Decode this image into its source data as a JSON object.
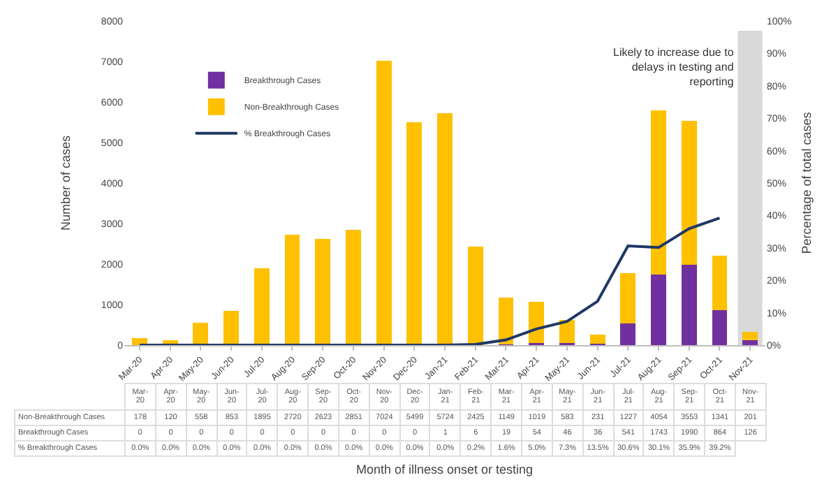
{
  "chart_data": {
    "type": "bar",
    "stacked": true,
    "categories": [
      "Mar-20",
      "Apr-20",
      "May-20",
      "Jun-20",
      "Jul-20",
      "Aug-20",
      "Sep-20",
      "Oct-20",
      "Nov-20",
      "Dec-20",
      "Jan-21",
      "Feb-21",
      "Mar-21",
      "Apr-21",
      "May-21",
      "Jun-21",
      "Jul-21",
      "Aug-21",
      "Sep-21",
      "Oct-21",
      "Nov-21"
    ],
    "series": [
      {
        "name": "Breakthrough Cases",
        "color": "#7030a0",
        "values": [
          0,
          0,
          0,
          0,
          0,
          0,
          0,
          0,
          0,
          0,
          1,
          6,
          19,
          54,
          46,
          36,
          541,
          1743,
          1990,
          864,
          126
        ]
      },
      {
        "name": "Non-Breakthrough Cases",
        "color": "#ffc000",
        "values": [
          178,
          120,
          558,
          853,
          1895,
          2720,
          2623,
          2851,
          7024,
          5499,
          5724,
          2425,
          1149,
          1019,
          583,
          231,
          1227,
          4054,
          3553,
          1341,
          201
        ]
      },
      {
        "name": "% Breakthrough Cases",
        "type": "line",
        "axis": "y2",
        "color": "#1f3864",
        "marker": "none",
        "values": [
          0.0,
          0.0,
          0.0,
          0.0,
          0.0,
          0.0,
          0.0,
          0.0,
          0.0,
          0.0,
          0.0,
          0.2,
          1.6,
          5.0,
          7.3,
          13.5,
          30.6,
          30.1,
          35.9,
          39.2,
          null
        ],
        "value_labels": [
          "0.0%",
          "0.0%",
          "0.0%",
          "0.0%",
          "0.0%",
          "0.0%",
          "0.0%",
          "0.0%",
          "0.0%",
          "0.0%",
          "0.0%",
          "0.2%",
          "1.6%",
          "5.0%",
          "7.3%",
          "13.5%",
          "30.6%",
          "30.1%",
          "35.9%",
          "39.2%",
          null
        ]
      }
    ],
    "data_labels": true,
    "ylabel": "Number of cases",
    "y2label": "Percentage of total cases",
    "annotations": [
      "Month of illness onset or testing"
    ],
    "ylim": [
      0,
      8000
    ],
    "yticks": [
      0,
      1000,
      2000,
      3000,
      4000,
      5000,
      6000,
      7000,
      8000
    ],
    "y2lim": [
      0,
      100
    ],
    "y2ticks": [
      {
        "value": 0,
        "label": "0%"
      },
      {
        "value": 10,
        "label": "10%"
      },
      {
        "value": 20,
        "label": "20%"
      },
      {
        "value": 30,
        "label": "30%"
      },
      {
        "value": 40,
        "label": "40%"
      },
      {
        "value": 50,
        "label": "50%"
      },
      {
        "value": 60,
        "label": "60%"
      },
      {
        "value": 70,
        "label": "70%"
      },
      {
        "value": 80,
        "label": "80%"
      },
      {
        "value": 90,
        "label": "90%"
      },
      {
        "value": 100,
        "label": "100%"
      }
    ],
    "bands": [
      {
        "axis": "x",
        "from": "Nov-21",
        "to": "Nov-21",
        "label": "Likely to increase due to delays in testing and reporting",
        "color": "#d9d9d9"
      }
    ],
    "grid": false,
    "legend": "top left"
  }
}
